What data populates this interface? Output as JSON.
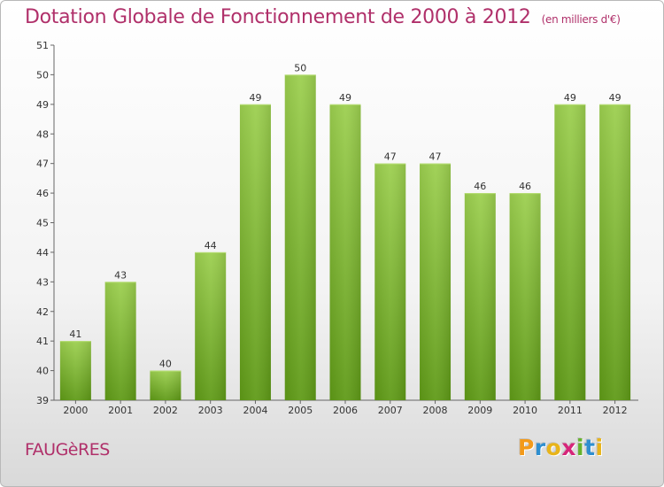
{
  "chart_data": {
    "type": "bar",
    "title": "Dotation Globale de Fonctionnement de 2000 à 2012",
    "subtitle": "(en milliers d'€)",
    "categories": [
      "2000",
      "2001",
      "2002",
      "2003",
      "2004",
      "2005",
      "2006",
      "2007",
      "2008",
      "2009",
      "2010",
      "2011",
      "2012"
    ],
    "values": [
      41,
      43,
      40,
      44,
      49,
      50,
      49,
      47,
      47,
      46,
      46,
      49,
      49
    ],
    "xlabel": "",
    "ylabel": "",
    "ylim": [
      39,
      51
    ],
    "yticks": [
      39,
      40,
      41,
      42,
      43,
      44,
      45,
      46,
      47,
      48,
      49,
      50,
      51
    ],
    "grid": false,
    "legend": "none",
    "bar_color": "#7fba2e"
  },
  "footer": {
    "commune": "FAUGèRES"
  },
  "logo": {
    "letters": [
      "P",
      "r",
      "o",
      "x",
      "i",
      "t",
      "i"
    ],
    "colors": [
      "#f39a1a",
      "#2f8fd0",
      "#e8b41a",
      "#d6267a",
      "#66b22d",
      "#2f8fd0",
      "#e8b41a"
    ]
  }
}
